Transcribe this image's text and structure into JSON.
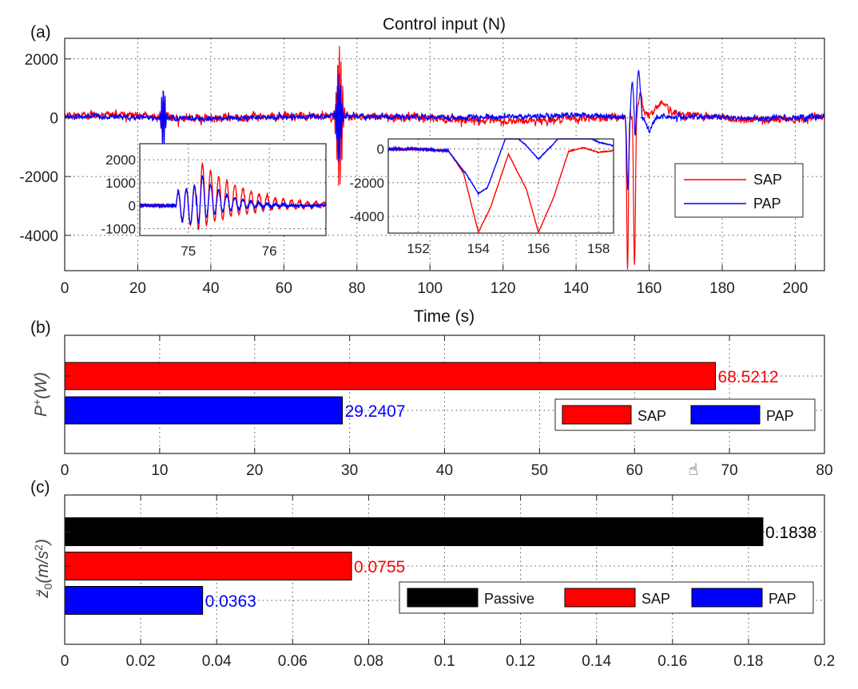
{
  "colors": {
    "SAP": "#ff0000",
    "PAP": "#0000ff",
    "Passive": "#000000"
  },
  "chart_data": [
    {
      "type": "line",
      "panel": "(a)",
      "title": "Control input (N)",
      "xlabel": "Time (s)",
      "ylabel": "",
      "xlim": [
        0,
        208
      ],
      "ylim": [
        -5200,
        2700
      ],
      "xticks": [
        0,
        20,
        40,
        60,
        80,
        100,
        120,
        140,
        160,
        180,
        200
      ],
      "yticks": [
        2000,
        0,
        -2000,
        -4000
      ],
      "grid": true,
      "legend_position": "right",
      "series": [
        {
          "name": "SAP",
          "color": "#ff0000",
          "noise_std": 115,
          "drift": [
            [
              0,
              60
            ],
            [
              15,
              120
            ],
            [
              25,
              40
            ],
            [
              40,
              -40
            ],
            [
              55,
              60
            ],
            [
              70,
              40
            ],
            [
              90,
              30
            ],
            [
              110,
              -60
            ],
            [
              120,
              -140
            ],
            [
              130,
              -90
            ],
            [
              140,
              -40
            ],
            [
              148,
              0
            ],
            [
              165,
              160
            ],
            [
              175,
              60
            ],
            [
              185,
              -60
            ],
            [
              200,
              -40
            ],
            [
              208,
              50
            ]
          ],
          "events": [
            {
              "t": 27,
              "amp": 1100,
              "width": 0.9,
              "osc": 6
            },
            {
              "t": 75.2,
              "amp": 2600,
              "width": 1.3,
              "osc": 9
            },
            {
              "t": 154.1,
              "amp": -5200,
              "width": 0.45,
              "osc": 0
            },
            {
              "t": 156.0,
              "amp": -5200,
              "width": 0.5,
              "osc": 0
            },
            {
              "t": 157.6,
              "amp": 700,
              "width": 1.2,
              "osc": 0
            },
            {
              "t": 163.5,
              "amp": 400,
              "width": 2.5,
              "osc": 0
            }
          ]
        },
        {
          "name": "PAP",
          "color": "#0000ff",
          "noise_std": 80,
          "drift": [
            [
              0,
              40
            ],
            [
              20,
              20
            ],
            [
              40,
              -40
            ],
            [
              60,
              30
            ],
            [
              80,
              60
            ],
            [
              100,
              20
            ],
            [
              120,
              20
            ],
            [
              140,
              80
            ],
            [
              150,
              40
            ],
            [
              170,
              30
            ],
            [
              190,
              -20
            ],
            [
              208,
              30
            ]
          ],
          "events": [
            {
              "t": 27,
              "amp": 1150,
              "width": 0.9,
              "osc": 6
            },
            {
              "t": 75.1,
              "amp": 1650,
              "width": 1.1,
              "osc": 8
            },
            {
              "t": 154.2,
              "amp": -2500,
              "width": 0.55,
              "osc": 0
            },
            {
              "t": 155.4,
              "amp": 1200,
              "width": 0.7,
              "osc": 0
            },
            {
              "t": 156.2,
              "amp": -900,
              "width": 0.5,
              "osc": 0
            },
            {
              "t": 157.1,
              "amp": 1600,
              "width": 0.9,
              "osc": 0
            },
            {
              "t": 160,
              "amp": -500,
              "width": 1.5,
              "osc": 0
            }
          ]
        }
      ],
      "insets": [
        {
          "xlim": [
            74.4,
            76.7
          ],
          "ylim": [
            -1300,
            2700
          ],
          "xticks": [
            75,
            76
          ],
          "yticks": [
            2000,
            1000,
            0,
            -1000
          ],
          "series": [
            {
              "name": "SAP",
              "color": "#ff0000",
              "onset": 74.85,
              "period": 0.1,
              "peak_t": 75.1,
              "peak": 2100,
              "neg": -1050,
              "decay": 0.55
            },
            {
              "name": "PAP",
              "color": "#0000ff",
              "onset": 74.85,
              "period": 0.1,
              "peak_t": 75.1,
              "peak": 1650,
              "neg": -800,
              "decay": 0.3
            }
          ]
        },
        {
          "xlim": [
            151,
            158.5
          ],
          "ylim": [
            -5000,
            600
          ],
          "xticks": [
            152,
            154,
            156,
            158
          ],
          "yticks": [
            0,
            -2000,
            -4000
          ],
          "series": [
            {
              "name": "SAP",
              "color": "#ff0000",
              "points": [
                [
                  151,
                  0
                ],
                [
                  152,
                  0
                ],
                [
                  153,
                  -100
                ],
                [
                  153.5,
                  -1400
                ],
                [
                  154,
                  -4950
                ],
                [
                  154.4,
                  -3500
                ],
                [
                  155,
                  -300
                ],
                [
                  155.6,
                  -2400
                ],
                [
                  156,
                  -4950
                ],
                [
                  156.5,
                  -2900
                ],
                [
                  157,
                  -150
                ],
                [
                  157.5,
                  80
                ],
                [
                  158,
                  -200
                ],
                [
                  158.5,
                  -100
                ]
              ]
            },
            {
              "name": "PAP",
              "color": "#0000ff",
              "points": [
                [
                  151,
                  0
                ],
                [
                  152,
                  0
                ],
                [
                  153,
                  -120
                ],
                [
                  153.6,
                  -1500
                ],
                [
                  154,
                  -2650
                ],
                [
                  154.3,
                  -2300
                ],
                [
                  155,
                  1100
                ],
                [
                  155.6,
                  200
                ],
                [
                  156,
                  -600
                ],
                [
                  156.5,
                  300
                ],
                [
                  157,
                  1400
                ],
                [
                  157.5,
                  850
                ],
                [
                  158,
                  400
                ],
                [
                  158.5,
                  200
                ]
              ]
            }
          ]
        }
      ]
    },
    {
      "type": "bar",
      "orientation": "horizontal",
      "panel": "(b)",
      "ylabel": "P^+(W)",
      "xlim": [
        0,
        80
      ],
      "xticks": [
        0,
        10,
        20,
        30,
        40,
        50,
        60,
        70,
        80
      ],
      "grid": true,
      "legend_position": "bottom-right",
      "categories": [
        "SAP",
        "PAP"
      ],
      "values": [
        68.5212,
        29.2407
      ],
      "value_labels": [
        "68.5212",
        "29.2407"
      ],
      "legend": [
        "SAP",
        "PAP"
      ]
    },
    {
      "type": "bar",
      "orientation": "horizontal",
      "panel": "(c)",
      "ylabel": "z̈0 (m/s^2)",
      "xlim": [
        0,
        0.2
      ],
      "xticks": [
        0,
        0.02,
        0.04,
        0.06,
        0.08,
        0.1,
        0.12,
        0.14,
        0.16,
        0.18,
        0.2
      ],
      "xticklabels": [
        "0",
        "0.02",
        "0.04",
        "0.06",
        "0.08",
        "0.1",
        "0.12",
        "0.14",
        "0.16",
        "0.18",
        "0.2"
      ],
      "grid": true,
      "legend_position": "bottom-right",
      "categories": [
        "Passive",
        "SAP",
        "PAP"
      ],
      "values": [
        0.1838,
        0.0755,
        0.0363
      ],
      "value_labels": [
        "0.1838",
        "0.0755",
        "0.0363"
      ],
      "legend": [
        "Passive",
        "SAP",
        "PAP"
      ]
    }
  ]
}
